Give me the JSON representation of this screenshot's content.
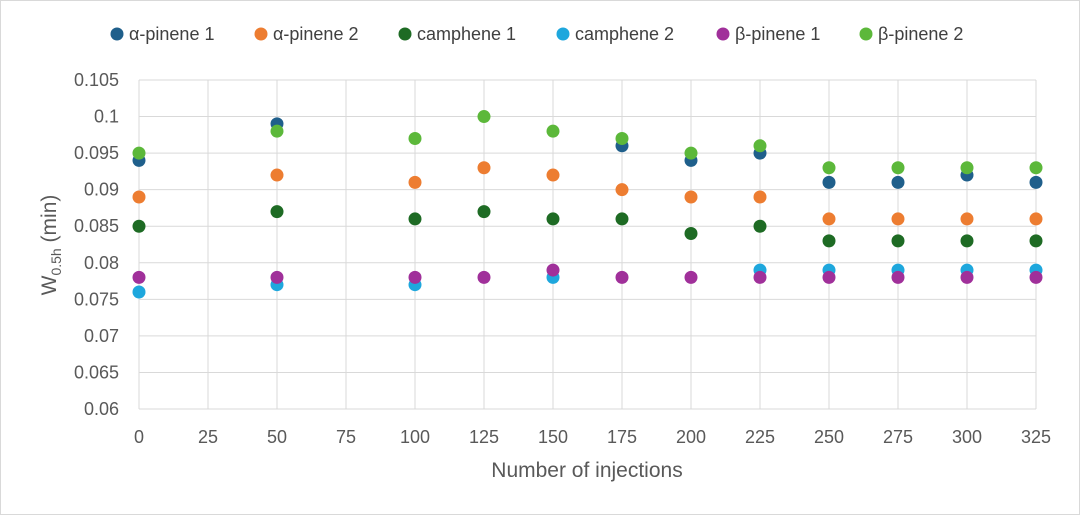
{
  "chart_data": {
    "type": "scatter",
    "xlabel": "Number of injections",
    "ylabel_main": "W",
    "ylabel_sub": "0.5h",
    "ylabel_unit": " (min)",
    "xlim": [
      0,
      325
    ],
    "ylim": [
      0.06,
      0.105
    ],
    "x_ticks": [
      "0",
      "25",
      "50",
      "75",
      "100",
      "125",
      "150",
      "175",
      "200",
      "225",
      "250",
      "275",
      "300",
      "325"
    ],
    "y_ticks": [
      "0.06",
      "0.065",
      "0.07",
      "0.075",
      "0.08",
      "0.085",
      "0.09",
      "0.095",
      "0.1",
      "0.105"
    ],
    "grid": true,
    "legend_position": "top",
    "x": [
      0,
      50,
      100,
      125,
      150,
      175,
      200,
      225,
      250,
      275,
      300,
      325
    ],
    "series": [
      {
        "name": "α-pinene 1",
        "color": "#1f5f8b",
        "y": [
          0.094,
          0.099,
          null,
          null,
          null,
          0.096,
          0.094,
          0.095,
          0.091,
          0.091,
          0.092,
          0.091
        ]
      },
      {
        "name": "α-pinene 2",
        "color": "#ed7d31",
        "y": [
          0.089,
          0.092,
          0.091,
          0.093,
          0.092,
          0.09,
          0.089,
          0.089,
          0.086,
          0.086,
          0.086,
          0.086
        ]
      },
      {
        "name": "camphene 1",
        "color": "#1e6b24",
        "y": [
          0.085,
          0.087,
          0.086,
          0.087,
          0.086,
          0.086,
          0.084,
          0.085,
          0.083,
          0.083,
          0.083,
          0.083
        ]
      },
      {
        "name": "camphene 2",
        "color": "#1ea7dd",
        "y": [
          0.076,
          0.077,
          0.077,
          null,
          0.078,
          null,
          null,
          0.079,
          0.079,
          0.079,
          0.079,
          0.079
        ]
      },
      {
        "name": "β-pinene 1",
        "color": "#a0309a",
        "y": [
          0.078,
          0.078,
          0.078,
          0.078,
          0.079,
          0.078,
          0.078,
          0.078,
          0.078,
          0.078,
          0.078,
          0.078
        ]
      },
      {
        "name": "β-pinene 2",
        "color": "#5cb83a",
        "y": [
          0.095,
          0.098,
          0.097,
          0.1,
          0.098,
          0.097,
          0.095,
          0.096,
          0.093,
          0.093,
          0.093,
          0.093
        ]
      }
    ]
  }
}
